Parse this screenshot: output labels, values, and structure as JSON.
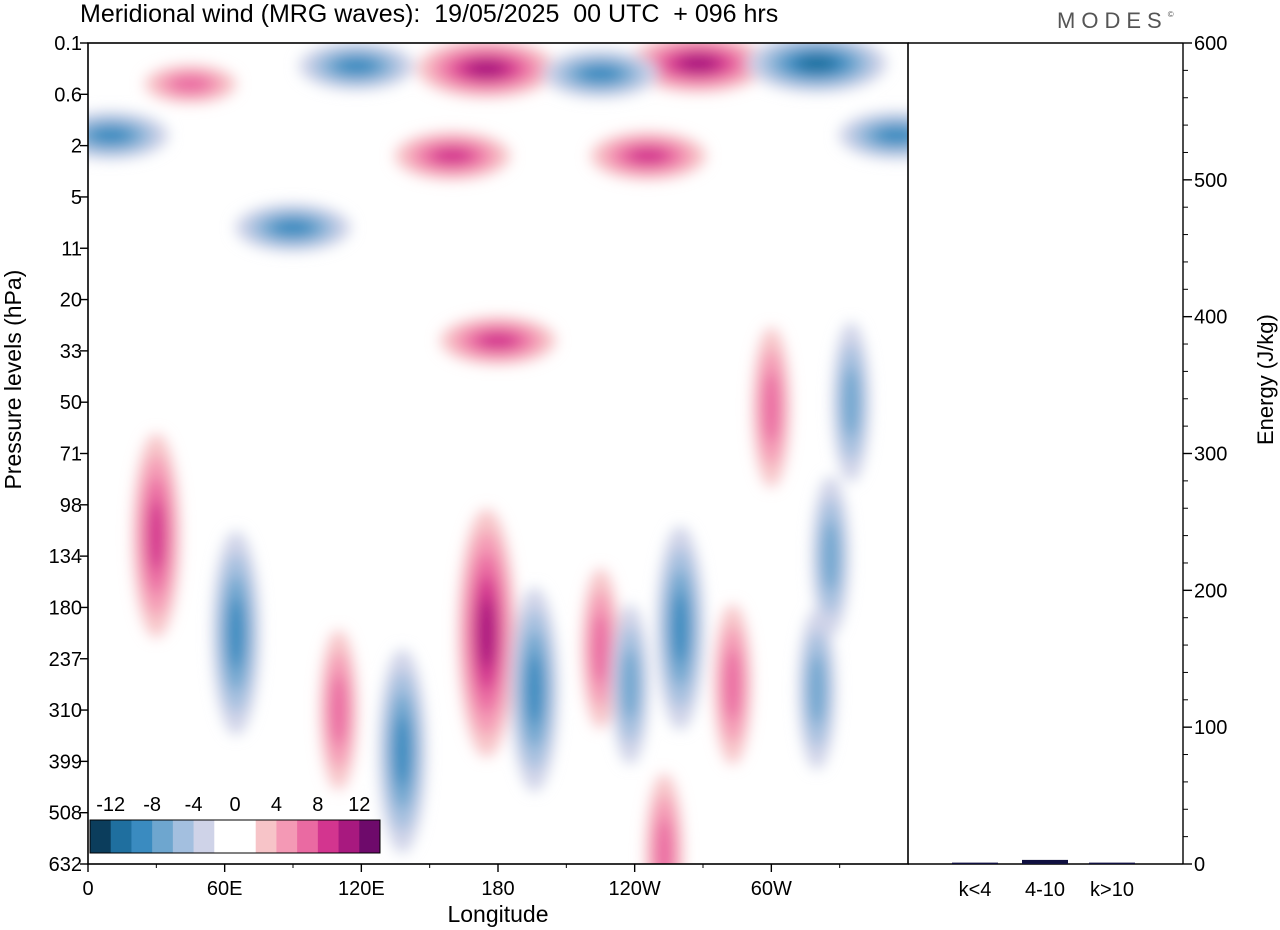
{
  "title": "Meridional wind (MRG waves):  19/05/2025  00 UTC  + 096 hrs",
  "brand": "MODES",
  "brand_mark": "©",
  "chart_data": [
    {
      "type": "heatmap",
      "variable": "Meridional wind (MRG waves)",
      "xlabel": "Longitude",
      "ylabel": "Pressure levels (hPa)",
      "x_ticks": [
        "0",
        "60E",
        "120E",
        "180",
        "120W",
        "60W"
      ],
      "x_range_deg": [
        0,
        360
      ],
      "y_ticks": [
        "0.1",
        "0.6",
        "2",
        "5",
        "11",
        "20",
        "33",
        "50",
        "71",
        "98",
        "134",
        "180",
        "237",
        "310",
        "399",
        "508",
        "632"
      ],
      "y_scale": "levels (top 0.1 hPa to bottom 632 hPa)",
      "colorbar": {
        "tick_labels": [
          "-12",
          "-8",
          "-4",
          "0",
          "4",
          "8",
          "12"
        ],
        "colors": [
          "#0b3d5c",
          "#1f6f9f",
          "#3a8bc0",
          "#6ea6cf",
          "#a3bfdf",
          "#cfd3e8",
          "#ffffff",
          "#ffffff",
          "#f7c4c8",
          "#f499b5",
          "#ea6aa2",
          "#d3358f",
          "#a8197f",
          "#6e0a6b"
        ]
      },
      "features": [
        {
          "lon": 175,
          "lev": 0.5,
          "sign": "pos",
          "strength": 3
        },
        {
          "lon": 160,
          "lev": 2.2,
          "sign": "pos",
          "strength": 2
        },
        {
          "lon": 180,
          "lev": 5.8,
          "sign": "pos",
          "strength": 2
        },
        {
          "lon": 268,
          "lev": 0.4,
          "sign": "pos",
          "strength": 3
        },
        {
          "lon": 246,
          "lev": 2.2,
          "sign": "pos",
          "strength": 2
        },
        {
          "lon": 45,
          "lev": 0.8,
          "sign": "pos",
          "strength": 1
        },
        {
          "lon": 118,
          "lev": 0.45,
          "sign": "neg",
          "strength": 2
        },
        {
          "lon": 225,
          "lev": 0.6,
          "sign": "neg",
          "strength": 2
        },
        {
          "lon": 320,
          "lev": 0.4,
          "sign": "neg",
          "strength": 3
        },
        {
          "lon": 10,
          "lev": 1.8,
          "sign": "neg",
          "strength": 2
        },
        {
          "lon": 90,
          "lev": 3.6,
          "sign": "neg",
          "strength": 2
        },
        {
          "lon": 355,
          "lev": 1.8,
          "sign": "neg",
          "strength": 2
        },
        {
          "lon": 30,
          "lev": 9.6,
          "sign": "pos",
          "strength": 2
        },
        {
          "lon": 65,
          "lev": 11.5,
          "sign": "neg",
          "strength": 2
        },
        {
          "lon": 175,
          "lev": 11.5,
          "sign": "pos",
          "strength": 3
        },
        {
          "lon": 196,
          "lev": 12.6,
          "sign": "neg",
          "strength": 2
        },
        {
          "lon": 138,
          "lev": 13.8,
          "sign": "neg",
          "strength": 2
        },
        {
          "lon": 110,
          "lev": 13.0,
          "sign": "pos",
          "strength": 1
        },
        {
          "lon": 225,
          "lev": 11.8,
          "sign": "pos",
          "strength": 1
        },
        {
          "lon": 238,
          "lev": 12.5,
          "sign": "neg",
          "strength": 1
        },
        {
          "lon": 260,
          "lev": 11.4,
          "sign": "neg",
          "strength": 2
        },
        {
          "lon": 283,
          "lev": 12.5,
          "sign": "pos",
          "strength": 1
        },
        {
          "lon": 320,
          "lev": 12.6,
          "sign": "neg",
          "strength": 1
        },
        {
          "lon": 326,
          "lev": 10.0,
          "sign": "neg",
          "strength": 1
        },
        {
          "lon": 253,
          "lev": 15.8,
          "sign": "pos",
          "strength": 1
        },
        {
          "lon": 300,
          "lev": 7.1,
          "sign": "pos",
          "strength": 1
        },
        {
          "lon": 335,
          "lev": 7.0,
          "sign": "neg",
          "strength": 1
        }
      ]
    },
    {
      "type": "bar",
      "categories": [
        "k<4",
        "4-10",
        "k>10"
      ],
      "values": [
        1,
        3,
        1
      ],
      "ylabel": "Energy (J/kg)",
      "ylim": [
        0,
        600
      ],
      "y_ticks": [
        "0",
        "100",
        "200",
        "300",
        "400",
        "500",
        "600"
      ]
    }
  ]
}
